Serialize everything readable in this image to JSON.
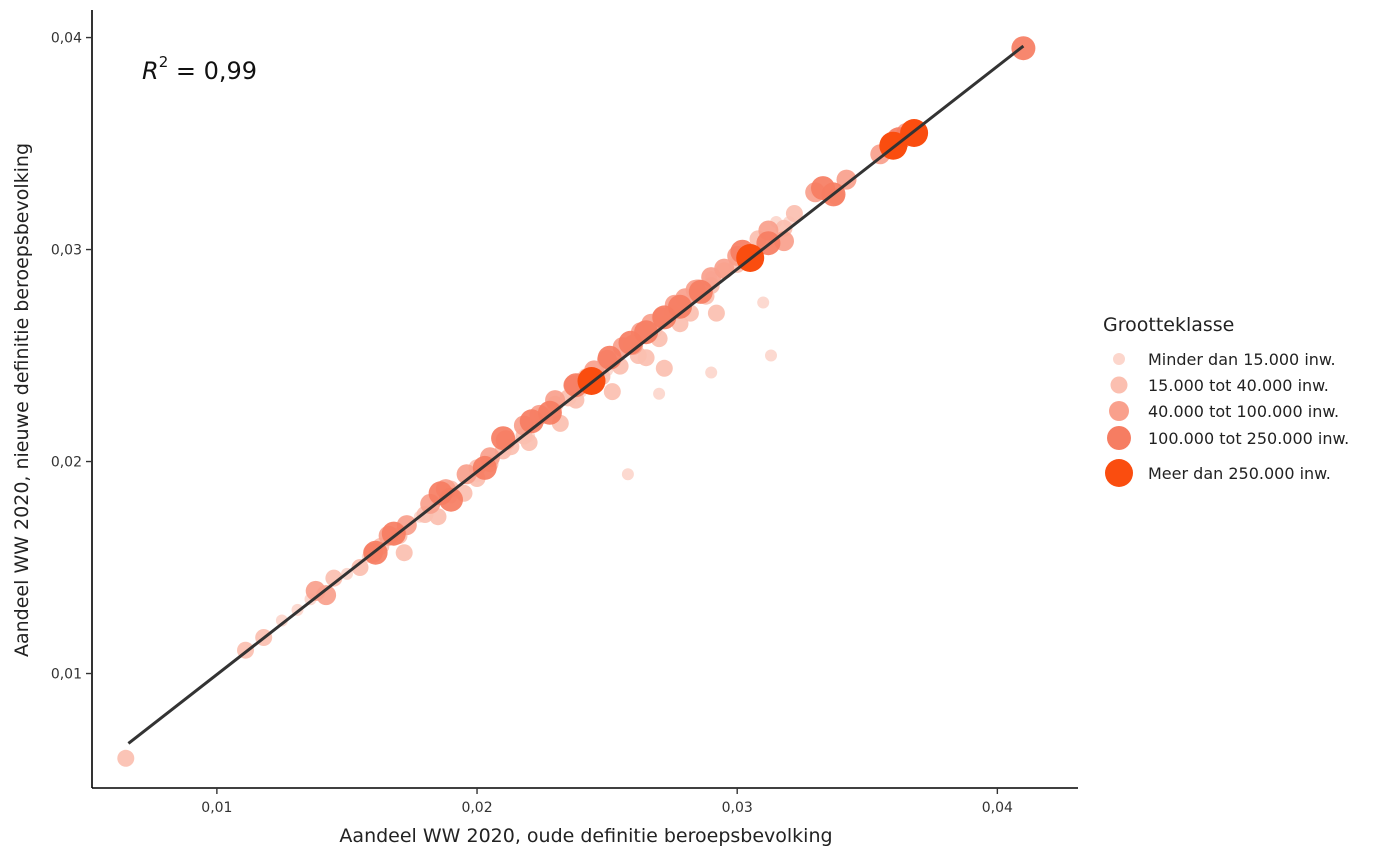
{
  "chart_data": {
    "type": "scatter",
    "xlabel": "Aandeel WW 2020, oude definitie beroepsbevolking",
    "ylabel": "Aandeel WW 2020, nieuwe definitie beroepsbevolking",
    "xlim": [
      0.0052,
      0.0431
    ],
    "ylim": [
      0.0046,
      0.0413
    ],
    "x_ticks": [
      0.01,
      0.02,
      0.03,
      0.04
    ],
    "x_tick_labels": [
      "0,01",
      "0,02",
      "0,03",
      "0,04"
    ],
    "y_ticks": [
      0.01,
      0.02,
      0.03,
      0.04
    ],
    "y_tick_labels": [
      "0,01",
      "0,02",
      "0,03",
      "0,04"
    ],
    "grid": false,
    "legend_position": "right",
    "annotation": {
      "label": "R",
      "superscript": "2",
      "value": " = 0,99"
    },
    "fit_line": {
      "x": [
        0.0066,
        0.041
      ],
      "y": [
        0.0067,
        0.0396
      ]
    },
    "legend": {
      "title": "Grootteklasse",
      "entries": [
        {
          "label": "Minder dan 15.000 inw.",
          "color": "#fcd6cc"
        },
        {
          "label": "15.000 tot 40.000 inw.",
          "color": "#fbbfb0"
        },
        {
          "label": "40.000 tot 100.000 inw.",
          "color": "#f9a08c"
        },
        {
          "label": "100.000 tot 250.000 inw.",
          "color": "#f67d62"
        },
        {
          "label": "Meer dan 250.000 inw.",
          "color": "#fa4d0f"
        }
      ]
    },
    "series": [
      {
        "name": "Minder dan 15.000 inw.",
        "points": [
          [
            0.0125,
            0.0125
          ],
          [
            0.0131,
            0.013
          ],
          [
            0.0136,
            0.0135
          ],
          [
            0.015,
            0.0147
          ],
          [
            0.0158,
            0.0155
          ],
          [
            0.0168,
            0.0163
          ],
          [
            0.0178,
            0.0174
          ],
          [
            0.019,
            0.0183
          ],
          [
            0.02,
            0.0193
          ],
          [
            0.021,
            0.0204
          ],
          [
            0.022,
            0.0212
          ],
          [
            0.023,
            0.0223
          ],
          [
            0.024,
            0.0233
          ],
          [
            0.025,
            0.0243
          ],
          [
            0.0258,
            0.0194
          ],
          [
            0.0262,
            0.0257
          ],
          [
            0.027,
            0.0232
          ],
          [
            0.0272,
            0.0266
          ],
          [
            0.028,
            0.0276
          ],
          [
            0.029,
            0.0242
          ],
          [
            0.029,
            0.0287
          ],
          [
            0.03,
            0.0297
          ],
          [
            0.031,
            0.0275
          ],
          [
            0.0313,
            0.025
          ],
          [
            0.0315,
            0.0313
          ],
          [
            0.032,
            0.0313
          ],
          [
            0.033,
            0.0328
          ]
        ]
      },
      {
        "name": "15.000 tot 40.000 inw.",
        "points": [
          [
            0.0065,
            0.006
          ],
          [
            0.0111,
            0.0111
          ],
          [
            0.0118,
            0.0117
          ],
          [
            0.0145,
            0.0145
          ],
          [
            0.0155,
            0.015
          ],
          [
            0.0163,
            0.016
          ],
          [
            0.017,
            0.0165
          ],
          [
            0.0172,
            0.0157
          ],
          [
            0.018,
            0.0175
          ],
          [
            0.0185,
            0.0174
          ],
          [
            0.019,
            0.0187
          ],
          [
            0.0195,
            0.0185
          ],
          [
            0.02,
            0.0197
          ],
          [
            0.02,
            0.0192
          ],
          [
            0.0205,
            0.0199
          ],
          [
            0.021,
            0.0205
          ],
          [
            0.0213,
            0.0207
          ],
          [
            0.0218,
            0.0212
          ],
          [
            0.022,
            0.0209
          ],
          [
            0.0225,
            0.0222
          ],
          [
            0.023,
            0.0227
          ],
          [
            0.0232,
            0.0218
          ],
          [
            0.0235,
            0.023
          ],
          [
            0.0238,
            0.0229
          ],
          [
            0.024,
            0.0238
          ],
          [
            0.0242,
            0.024
          ],
          [
            0.0248,
            0.024
          ],
          [
            0.0252,
            0.0233
          ],
          [
            0.0255,
            0.0245
          ],
          [
            0.026,
            0.0256
          ],
          [
            0.0262,
            0.025
          ],
          [
            0.0265,
            0.0249
          ],
          [
            0.0268,
            0.0262
          ],
          [
            0.027,
            0.0258
          ],
          [
            0.0272,
            0.0244
          ],
          [
            0.0275,
            0.027
          ],
          [
            0.0278,
            0.0265
          ],
          [
            0.0282,
            0.027
          ],
          [
            0.0285,
            0.0282
          ],
          [
            0.0288,
            0.0278
          ],
          [
            0.029,
            0.0283
          ],
          [
            0.0292,
            0.027
          ],
          [
            0.0295,
            0.029
          ],
          [
            0.03,
            0.0293
          ],
          [
            0.0308,
            0.0305
          ],
          [
            0.0318,
            0.031
          ],
          [
            0.0322,
            0.0317
          ],
          [
            0.0338,
            0.0325
          ]
        ]
      },
      {
        "name": "40.000 tot 100.000 inw.",
        "points": [
          [
            0.0138,
            0.0139
          ],
          [
            0.0142,
            0.0137
          ],
          [
            0.016,
            0.0157
          ],
          [
            0.0166,
            0.0165
          ],
          [
            0.0173,
            0.017
          ],
          [
            0.0182,
            0.018
          ],
          [
            0.0188,
            0.0187
          ],
          [
            0.0196,
            0.0194
          ],
          [
            0.0205,
            0.0202
          ],
          [
            0.0211,
            0.021
          ],
          [
            0.0218,
            0.0217
          ],
          [
            0.0224,
            0.0222
          ],
          [
            0.023,
            0.0229
          ],
          [
            0.0237,
            0.0236
          ],
          [
            0.0245,
            0.0243
          ],
          [
            0.025,
            0.0248
          ],
          [
            0.0256,
            0.0254
          ],
          [
            0.026,
            0.0255
          ],
          [
            0.0263,
            0.0261
          ],
          [
            0.0267,
            0.0265
          ],
          [
            0.0271,
            0.0268
          ],
          [
            0.0276,
            0.0274
          ],
          [
            0.028,
            0.0277
          ],
          [
            0.0284,
            0.0281
          ],
          [
            0.029,
            0.0287
          ],
          [
            0.0295,
            0.0291
          ],
          [
            0.03,
            0.0297
          ],
          [
            0.0312,
            0.0309
          ],
          [
            0.0318,
            0.0304
          ],
          [
            0.033,
            0.0327
          ],
          [
            0.0342,
            0.0333
          ],
          [
            0.0355,
            0.0345
          ],
          [
            0.0365,
            0.0355
          ]
        ]
      },
      {
        "name": "100.000 tot 250.000 inw.",
        "points": [
          [
            0.0161,
            0.0157
          ],
          [
            0.0168,
            0.0166
          ],
          [
            0.0186,
            0.0185
          ],
          [
            0.019,
            0.0182
          ],
          [
            0.0203,
            0.0197
          ],
          [
            0.021,
            0.0211
          ],
          [
            0.0221,
            0.0219
          ],
          [
            0.0228,
            0.0223
          ],
          [
            0.0238,
            0.0236
          ],
          [
            0.0251,
            0.0249
          ],
          [
            0.0259,
            0.0256
          ],
          [
            0.0265,
            0.0261
          ],
          [
            0.0272,
            0.0268
          ],
          [
            0.0278,
            0.0273
          ],
          [
            0.0286,
            0.028
          ],
          [
            0.0302,
            0.0299
          ],
          [
            0.0312,
            0.0303
          ],
          [
            0.0333,
            0.0329
          ],
          [
            0.0337,
            0.0326
          ],
          [
            0.0362,
            0.0352
          ],
          [
            0.041,
            0.0395
          ]
        ]
      },
      {
        "name": "Meer dan 250.000 inw.",
        "points": [
          [
            0.0244,
            0.0238
          ],
          [
            0.0305,
            0.0296
          ],
          [
            0.036,
            0.0349
          ],
          [
            0.0368,
            0.0355
          ]
        ]
      }
    ]
  }
}
